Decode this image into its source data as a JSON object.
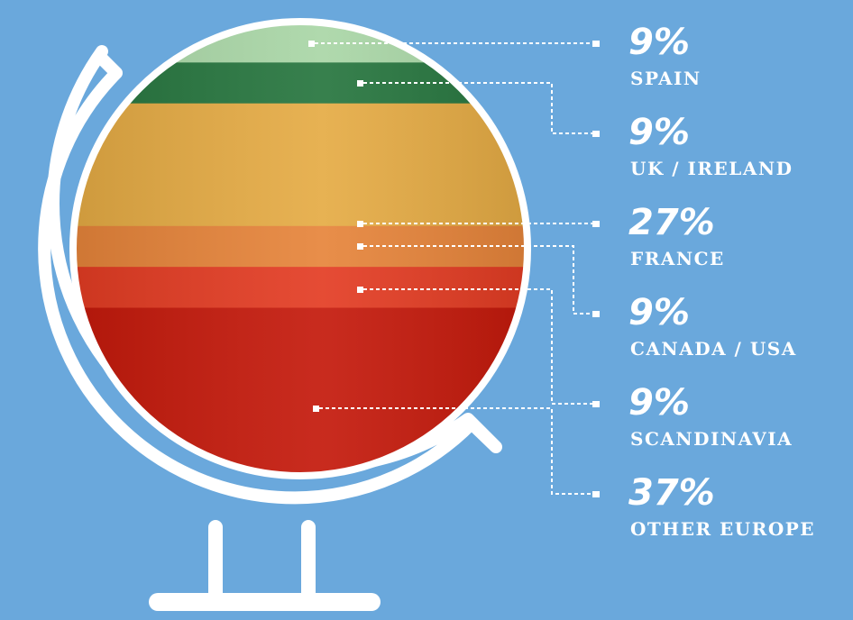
{
  "chart_data": {
    "type": "bar",
    "orientation": "stacked-bands",
    "categories": [
      "SPAIN",
      "UK / IRELAND",
      "FRANCE",
      "CANADA / USA",
      "SCANDINAVIA",
      "OTHER EUROPE"
    ],
    "values": [
      9,
      9,
      27,
      9,
      9,
      37
    ],
    "value_labels": [
      "9%",
      "9%",
      "27%",
      "9%",
      "9%",
      "37%"
    ],
    "colors": [
      "#a9d6a6",
      "#26753e",
      "#e5ab44",
      "#e6843a",
      "#e33c23",
      "#c4190b"
    ],
    "background": "#6aa8dc",
    "legend": "right"
  }
}
